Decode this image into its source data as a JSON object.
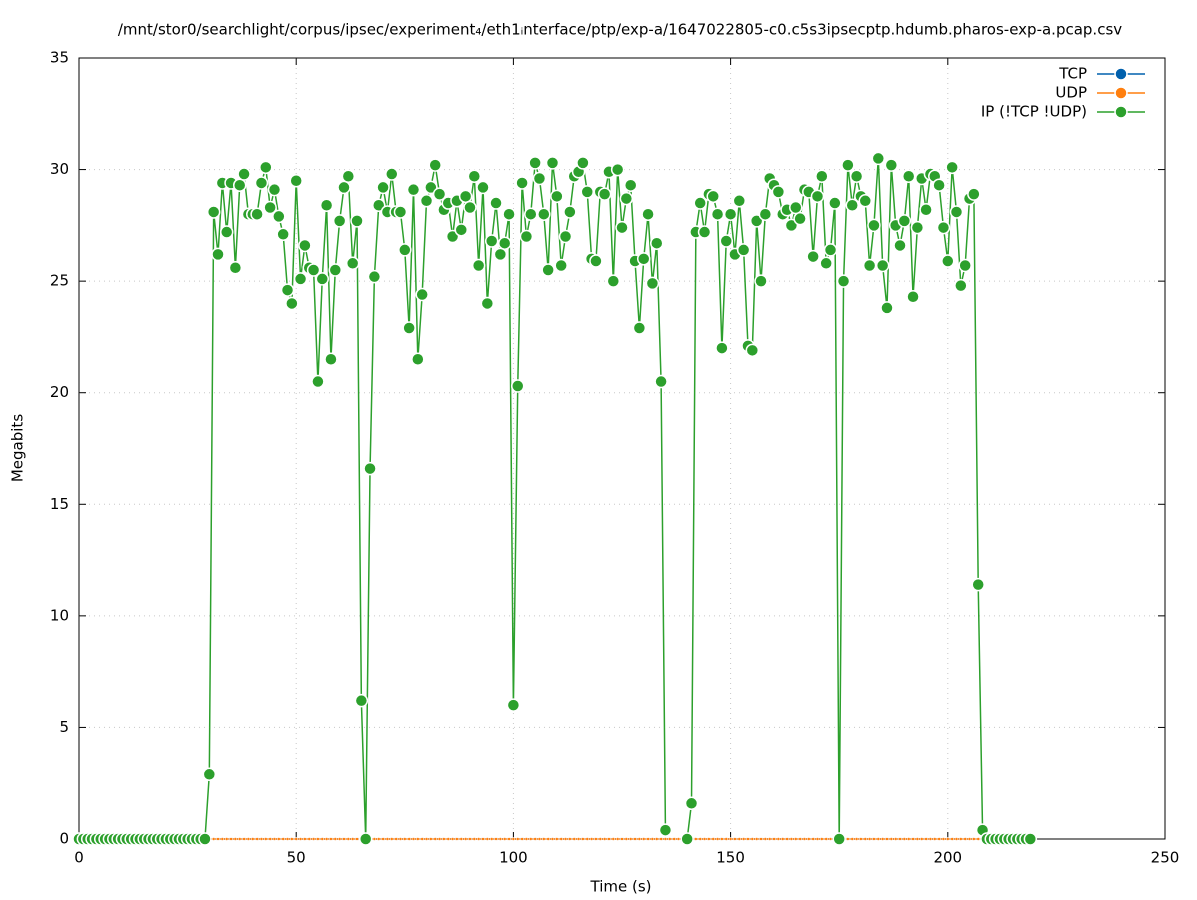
{
  "chart_data": {
    "type": "line",
    "title": "/mnt/stor0/searchlight/corpus/ipsec/experiment₄/eth1ᵢnterface/ptp/exp-a/1647022805-c0.c5s3ipsecptp.hdumb.pharos-exp-a.pcap.csv",
    "x_label": "Time (s)",
    "y_label": "Megabits",
    "xlim": [
      0,
      250
    ],
    "xticks": [
      0,
      50,
      100,
      150,
      200,
      250
    ],
    "ylim": [
      0,
      35
    ],
    "yticks": [
      0,
      5,
      10,
      15,
      20,
      25,
      30,
      35
    ],
    "grid": true,
    "legend": "top-right",
    "x": [
      0,
      1,
      2,
      3,
      4,
      5,
      6,
      7,
      8,
      9,
      10,
      11,
      12,
      13,
      14,
      15,
      16,
      17,
      18,
      19,
      20,
      21,
      22,
      23,
      24,
      25,
      26,
      27,
      28,
      29,
      30,
      31,
      32,
      33,
      34,
      35,
      36,
      37,
      38,
      39,
      40,
      41,
      42,
      43,
      44,
      45,
      46,
      47,
      48,
      49,
      50,
      51,
      52,
      53,
      54,
      55,
      56,
      57,
      58,
      59,
      60,
      61,
      62,
      63,
      64,
      65,
      66,
      67,
      68,
      69,
      70,
      71,
      72,
      73,
      74,
      75,
      76,
      77,
      78,
      79,
      80,
      81,
      82,
      83,
      84,
      85,
      86,
      87,
      88,
      89,
      90,
      91,
      92,
      93,
      94,
      95,
      96,
      97,
      98,
      99,
      100,
      101,
      102,
      103,
      104,
      105,
      106,
      107,
      108,
      109,
      110,
      111,
      112,
      113,
      114,
      115,
      116,
      117,
      118,
      119,
      120,
      121,
      122,
      123,
      124,
      125,
      126,
      127,
      128,
      129,
      130,
      131,
      132,
      133,
      134,
      135,
      136,
      137,
      138,
      139,
      140,
      141,
      142,
      143,
      144,
      145,
      146,
      147,
      148,
      149,
      150,
      151,
      152,
      153,
      154,
      155,
      156,
      157,
      158,
      159,
      160,
      161,
      162,
      163,
      164,
      165,
      166,
      167,
      168,
      169,
      170,
      171,
      172,
      173,
      174,
      175,
      176,
      177,
      178,
      179,
      180,
      181,
      182,
      183,
      184,
      185,
      186,
      187,
      188,
      189,
      190,
      191,
      192,
      193,
      194,
      195,
      196,
      197,
      198,
      199,
      200,
      201,
      202,
      203,
      204,
      205,
      206,
      207,
      208,
      209,
      210,
      211,
      212,
      213,
      214,
      215,
      216,
      217,
      218,
      219
    ],
    "series": [
      {
        "name": "TCP",
        "color": "#0060ad",
        "marker_size": 1.5,
        "values": [
          0,
          0,
          0,
          0,
          0,
          0,
          0,
          0,
          0,
          0,
          0,
          0,
          0,
          0,
          0,
          0,
          0,
          0,
          0,
          0,
          0,
          0,
          0,
          0,
          0,
          0,
          0,
          0,
          0,
          0,
          0,
          0,
          0,
          0,
          0,
          0,
          0,
          0,
          0,
          0,
          0,
          0,
          0,
          0,
          0,
          0,
          0,
          0,
          0,
          0,
          0,
          0,
          0,
          0,
          0,
          0,
          0,
          0,
          0,
          0,
          0,
          0,
          0,
          0,
          0,
          0,
          0,
          0,
          0,
          0,
          0,
          0,
          0,
          0,
          0,
          0,
          0,
          0,
          0,
          0,
          0,
          0,
          0,
          0,
          0,
          0,
          0,
          0,
          0,
          0,
          0,
          0,
          0,
          0,
          0,
          0,
          0,
          0,
          0,
          0,
          0,
          0,
          0,
          0,
          0,
          0,
          0,
          0,
          0,
          0,
          0,
          0,
          0,
          0,
          0,
          0,
          0,
          0,
          0,
          0,
          0,
          0,
          0,
          0,
          0,
          0,
          0,
          0,
          0,
          0,
          0,
          0,
          0,
          0,
          0,
          0,
          0,
          0,
          0,
          0,
          0,
          0,
          0,
          0,
          0,
          0,
          0,
          0,
          0,
          0,
          0,
          0,
          0,
          0,
          0,
          0,
          0,
          0,
          0,
          0,
          0,
          0,
          0,
          0,
          0,
          0,
          0,
          0,
          0,
          0,
          0,
          0,
          0,
          0,
          0,
          0,
          0,
          0,
          0,
          0,
          0,
          0,
          0,
          0,
          0,
          0,
          0,
          0,
          0,
          0,
          0,
          0,
          0,
          0,
          0,
          0,
          0,
          0,
          0,
          0,
          0,
          0,
          0,
          0,
          0,
          0,
          0,
          0,
          0,
          0,
          0,
          0,
          0,
          0,
          0,
          0,
          0,
          0,
          0,
          0
        ]
      },
      {
        "name": "UDP",
        "color": "#ff7f0e",
        "marker_size": 1.5,
        "values": [
          0,
          0,
          0,
          0,
          0,
          0,
          0,
          0,
          0,
          0,
          0,
          0,
          0,
          0,
          0,
          0,
          0,
          0,
          0,
          0,
          0,
          0,
          0,
          0,
          0,
          0,
          0,
          0,
          0,
          0,
          0,
          0,
          0,
          0,
          0,
          0,
          0,
          0,
          0,
          0,
          0,
          0,
          0,
          0,
          0,
          0,
          0,
          0,
          0,
          0,
          0,
          0,
          0,
          0,
          0,
          0,
          0,
          0,
          0,
          0,
          0,
          0,
          0,
          0,
          0,
          0,
          0,
          0,
          0,
          0,
          0,
          0,
          0,
          0,
          0,
          0,
          0,
          0,
          0,
          0,
          0,
          0,
          0,
          0,
          0,
          0,
          0,
          0,
          0,
          0,
          0,
          0,
          0,
          0,
          0,
          0,
          0,
          0,
          0,
          0,
          0,
          0,
          0,
          0,
          0,
          0,
          0,
          0,
          0,
          0,
          0,
          0,
          0,
          0,
          0,
          0,
          0,
          0,
          0,
          0,
          0,
          0,
          0,
          0,
          0,
          0,
          0,
          0,
          0,
          0,
          0,
          0,
          0,
          0,
          0,
          0,
          0,
          0,
          0,
          0,
          0,
          0,
          0,
          0,
          0,
          0,
          0,
          0,
          0,
          0,
          0,
          0,
          0,
          0,
          0,
          0,
          0,
          0,
          0,
          0,
          0,
          0,
          0,
          0,
          0,
          0,
          0,
          0,
          0,
          0,
          0,
          0,
          0,
          0,
          0,
          0,
          0,
          0,
          0,
          0,
          0,
          0,
          0,
          0,
          0,
          0,
          0,
          0,
          0,
          0,
          0,
          0,
          0,
          0,
          0,
          0,
          0,
          0,
          0,
          0,
          0,
          0,
          0,
          0,
          0,
          0,
          0,
          0,
          0,
          0,
          0,
          0,
          0,
          0,
          0,
          0,
          0,
          0,
          0,
          0
        ]
      },
      {
        "name": "IP (!TCP  !UDP)",
        "color": "#2ca02c",
        "marker_size": 6,
        "values": [
          0,
          0,
          0,
          0,
          0,
          0,
          0,
          0,
          0,
          0,
          0,
          0,
          0,
          0,
          0,
          0,
          0,
          0,
          0,
          0,
          0,
          0,
          0,
          0,
          0,
          0,
          0,
          0,
          0,
          0,
          2.9,
          28.1,
          26.2,
          29.4,
          27.2,
          29.4,
          25.6,
          29.3,
          29.8,
          28.0,
          28.0,
          28.0,
          29.4,
          30.1,
          28.3,
          29.1,
          27.9,
          27.1,
          24.6,
          24.0,
          29.5,
          25.1,
          26.6,
          25.6,
          25.5,
          20.5,
          25.1,
          28.4,
          21.5,
          25.5,
          27.7,
          29.2,
          29.7,
          25.8,
          27.7,
          6.2,
          0,
          16.6,
          25.2,
          28.4,
          29.2,
          28.1,
          29.8,
          28.1,
          28.1,
          26.4,
          22.9,
          29.1,
          21.5,
          24.4,
          28.6,
          29.2,
          30.2,
          28.9,
          28.2,
          28.5,
          27.0,
          28.6,
          27.3,
          28.8,
          28.3,
          29.7,
          25.7,
          29.2,
          24.0,
          26.8,
          28.5,
          26.2,
          26.7,
          28.0,
          6.0,
          20.3,
          29.4,
          27.0,
          28.0,
          30.3,
          29.6,
          28.0,
          25.5,
          30.3,
          28.8,
          25.7,
          27.0,
          28.1,
          29.7,
          29.9,
          30.3,
          29.0,
          26.0,
          25.9,
          29.0,
          28.9,
          29.9,
          25.0,
          30.0,
          27.4,
          28.7,
          29.3,
          25.9,
          22.9,
          26.0,
          28.0,
          24.9,
          26.7,
          20.5,
          0.4,
          null,
          null,
          null,
          null,
          0,
          1.6,
          27.2,
          28.5,
          27.2,
          28.9,
          28.8,
          28.0,
          22.0,
          26.8,
          28.0,
          26.2,
          28.6,
          26.4,
          22.1,
          21.9,
          27.7,
          25.0,
          28.0,
          29.6,
          29.3,
          29.0,
          28.0,
          28.2,
          27.5,
          28.3,
          27.8,
          29.1,
          29.0,
          26.1,
          28.8,
          29.7,
          25.8,
          26.4,
          28.5,
          0,
          25.0,
          30.2,
          28.4,
          29.7,
          28.8,
          28.6,
          25.7,
          27.5,
          30.5,
          25.7,
          23.8,
          30.2,
          27.5,
          26.6,
          27.7,
          29.7,
          24.3,
          27.4,
          29.6,
          28.2,
          29.8,
          29.7,
          29.3,
          27.4,
          25.9,
          30.1,
          28.1,
          24.8,
          25.7,
          28.7,
          28.9,
          11.4,
          0.4,
          0,
          0,
          0,
          0,
          0,
          0,
          0,
          0,
          0,
          0,
          0
        ]
      }
    ]
  }
}
